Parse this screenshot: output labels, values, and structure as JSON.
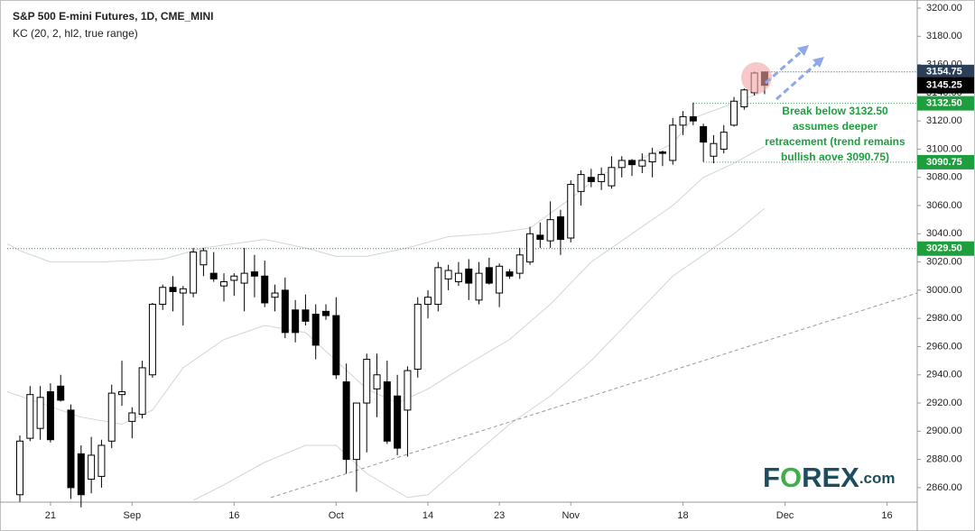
{
  "chart_data": {
    "type": "candlestick",
    "title": "S&P 500 E-mini Futures, 1D, CME_MINI",
    "subtitle": "KC (20, 2, hl2, true range)",
    "up_color": "#ffffff",
    "down_color": "#000000",
    "ohlc": [
      [
        2855,
        2897,
        2850,
        2893
      ],
      [
        2895,
        2932,
        2893,
        2926
      ],
      [
        2902,
        2932,
        2894,
        2924
      ],
      [
        2928,
        2934,
        2892,
        2894
      ],
      [
        2932,
        2940,
        2921,
        2922
      ],
      [
        2915,
        2919,
        2852,
        2860
      ],
      [
        2884,
        2890,
        2846,
        2855
      ],
      [
        2866,
        2896,
        2856,
        2883
      ],
      [
        2868,
        2894,
        2860,
        2890
      ],
      [
        2893,
        2933,
        2888,
        2927
      ],
      [
        2926,
        2950,
        2918,
        2928
      ],
      [
        2907,
        2917,
        2895,
        2913
      ],
      [
        2912,
        2950,
        2909,
        2945
      ],
      [
        2940,
        2991,
        2938,
        2990
      ],
      [
        2990,
        3004,
        2986,
        3002
      ],
      [
        3002,
        3010,
        2985,
        2999
      ],
      [
        2998,
        3003,
        2975,
        3001
      ],
      [
        2998,
        3030,
        2995,
        3027
      ],
      [
        3018,
        3030,
        3010,
        3028
      ],
      [
        3012,
        3027,
        3006,
        3008
      ],
      [
        3003,
        3012,
        2992,
        3006
      ],
      [
        3007,
        3012,
        2996,
        3010
      ],
      [
        3005,
        3030,
        2985,
        3012
      ],
      [
        3013,
        3025,
        2995,
        3010
      ],
      [
        3010,
        3021,
        2988,
        2991
      ],
      [
        2995,
        3004,
        2985,
        2998
      ],
      [
        3000,
        3009,
        2966,
        2970
      ],
      [
        2986,
        2993,
        2963,
        2970
      ],
      [
        2986,
        2997,
        2975,
        2978
      ],
      [
        2983,
        2990,
        2951,
        2961
      ],
      [
        2985,
        2990,
        2979,
        2982
      ],
      [
        2982,
        2995,
        2937,
        2940
      ],
      [
        2935,
        2948,
        2870,
        2880
      ],
      [
        2880,
        2918,
        2857,
        2920
      ],
      [
        2920,
        2955,
        2885,
        2951
      ],
      [
        2930,
        2955,
        2910,
        2940
      ],
      [
        2935,
        2950,
        2891,
        2893
      ],
      [
        2925,
        2940,
        2883,
        2888
      ],
      [
        2915,
        2946,
        2882,
        2943
      ],
      [
        2944,
        2995,
        2938,
        2990
      ],
      [
        2990,
        3000,
        2980,
        2995
      ],
      [
        2990,
        3020,
        2985,
        3016
      ],
      [
        3008,
        3018,
        3000,
        3014
      ],
      [
        3006,
        3020,
        3003,
        3012
      ],
      [
        3015,
        3022,
        2993,
        3005
      ],
      [
        2993,
        3020,
        2990,
        3012
      ],
      [
        3016,
        3023,
        3004,
        3005
      ],
      [
        2998,
        3019,
        2988,
        3017
      ],
      [
        3013,
        3015,
        3008,
        3010
      ],
      [
        3012,
        3030,
        3008,
        3025
      ],
      [
        3020,
        3045,
        3018,
        3040
      ],
      [
        3039,
        3048,
        3030,
        3036
      ],
      [
        3035,
        3063,
        3030,
        3050
      ],
      [
        3052,
        3057,
        3025,
        3036
      ],
      [
        3037,
        3078,
        3034,
        3075
      ],
      [
        3070,
        3085,
        3060,
        3082
      ],
      [
        3080,
        3086,
        3073,
        3077
      ],
      [
        3077,
        3087,
        3071,
        3082
      ],
      [
        3074,
        3095,
        3072,
        3087
      ],
      [
        3087,
        3095,
        3080,
        3092
      ],
      [
        3092,
        3093,
        3081,
        3089
      ],
      [
        3088,
        3097,
        3083,
        3092
      ],
      [
        3091,
        3101,
        3080,
        3097
      ],
      [
        3098,
        3099,
        3088,
        3097
      ],
      [
        3092,
        3122,
        3089,
        3117
      ],
      [
        3117,
        3127,
        3110,
        3123
      ],
      [
        3123,
        3133,
        3117,
        3120
      ],
      [
        3116,
        3118,
        3091,
        3105
      ],
      [
        3095,
        3110,
        3090,
        3104
      ],
      [
        3100,
        3117,
        3097,
        3112
      ],
      [
        3117,
        3137,
        3116,
        3134
      ],
      [
        3130,
        3143,
        3128,
        3142
      ],
      [
        3140,
        3155,
        3138,
        3154
      ],
      [
        3154.75,
        3155,
        3139,
        3145.25
      ]
    ],
    "xlim": [
      -1.24,
      87.96
    ],
    "xticks": [
      {
        "value": 3,
        "label": "21"
      },
      {
        "value": 11,
        "label": "Sep"
      },
      {
        "value": 21,
        "label": "16"
      },
      {
        "value": 31,
        "label": "Oct"
      },
      {
        "value": 40,
        "label": "14"
      },
      {
        "value": 47,
        "label": "23"
      },
      {
        "value": 54,
        "label": "Nov"
      },
      {
        "value": 65,
        "label": "18"
      },
      {
        "value": 75,
        "label": "Dec"
      },
      {
        "value": 85,
        "label": "16"
      }
    ],
    "ylim": [
      2851,
      3205.75
    ],
    "yticks": [
      {
        "value": 2860,
        "label": "2860.00"
      },
      {
        "value": 2880,
        "label": "2880.00"
      },
      {
        "value": 2900,
        "label": "2900.00"
      },
      {
        "value": 2920,
        "label": "2920.00"
      },
      {
        "value": 2940,
        "label": "2940.00"
      },
      {
        "value": 2960,
        "label": "2960.00"
      },
      {
        "value": 2980,
        "label": "2980.00"
      },
      {
        "value": 3000,
        "label": "3000.00"
      },
      {
        "value": 3020,
        "label": "3020.00"
      },
      {
        "value": 3040,
        "label": "3040.00"
      },
      {
        "value": 3060,
        "label": "3060.00"
      },
      {
        "value": 3080,
        "label": "3080.00"
      },
      {
        "value": 3100,
        "label": "3100.00"
      },
      {
        "value": 3120,
        "label": "3120.00"
      },
      {
        "value": 3140,
        "label": "3140.00"
      },
      {
        "value": 3160,
        "label": "3160.00"
      },
      {
        "value": 3180,
        "label": "3180.00"
      },
      {
        "value": 3200,
        "label": "3200.00"
      }
    ],
    "bands": [
      {
        "color": "#d4d4d4",
        "x": [
          -1.24,
          0,
          3,
          8,
          14,
          18,
          24,
          28,
          31,
          34,
          38,
          42,
          46,
          50,
          54,
          57,
          60,
          64,
          66,
          69,
          73
        ],
        "values": [
          3033,
          3028,
          3020,
          3020,
          3022,
          3030,
          3036,
          3030,
          3024,
          3024,
          3030,
          3038,
          3040,
          3044,
          3065,
          3082,
          3090,
          3104,
          3122,
          3130,
          3141
        ]
      },
      {
        "color": "#d4d4d4",
        "x": [
          -1.24,
          2,
          6,
          10,
          13,
          16,
          20,
          24,
          28,
          31,
          34,
          37,
          40,
          44,
          48,
          52,
          56,
          60,
          64,
          67,
          70,
          73
        ],
        "values": [
          2928,
          2920,
          2910,
          2905,
          2915,
          2945,
          2965,
          2975,
          2970,
          2950,
          2930,
          2920,
          2930,
          2948,
          2965,
          2990,
          3020,
          3040,
          3060,
          3080,
          3090,
          3102
        ]
      },
      {
        "color": "#d4d4d4",
        "x": [
          17,
          20,
          24,
          28,
          31,
          34,
          38,
          40,
          44,
          48,
          52,
          56,
          60,
          64,
          67,
          70,
          73
        ],
        "values": [
          2851,
          2862,
          2878,
          2890,
          2890,
          2870,
          2853,
          2855,
          2880,
          2905,
          2925,
          2950,
          2980,
          3010,
          3025,
          3040,
          3058
        ]
      }
    ],
    "trendline": {
      "color": "#999999",
      "x": [
        24.6,
        87.96
      ],
      "values": [
        2853,
        2998
      ]
    },
    "levels": [
      {
        "value": 3154.75,
        "x": 73.4,
        "color": "#2b4058"
      },
      {
        "value": 3132.5,
        "label": "3132.50",
        "x": 66,
        "color": "#1e9e3e"
      },
      {
        "value": 3090.75,
        "x": 67,
        "color": "#1e9e3e"
      },
      {
        "value": 3029.5,
        "label": "3029.50",
        "x": -1.24,
        "color": "#1e9e3e"
      }
    ],
    "last_price": {
      "value": 3145.25,
      "color": "#000000"
    },
    "annotation": {
      "color": "#1e9e3e",
      "lines": [
        "Break below 3132.50",
        "assumes deeper",
        "retracement (trend remains",
        "bullish aove 3090.75)"
      ]
    },
    "logo": [
      "F",
      "O",
      "REX",
      ".com"
    ]
  }
}
